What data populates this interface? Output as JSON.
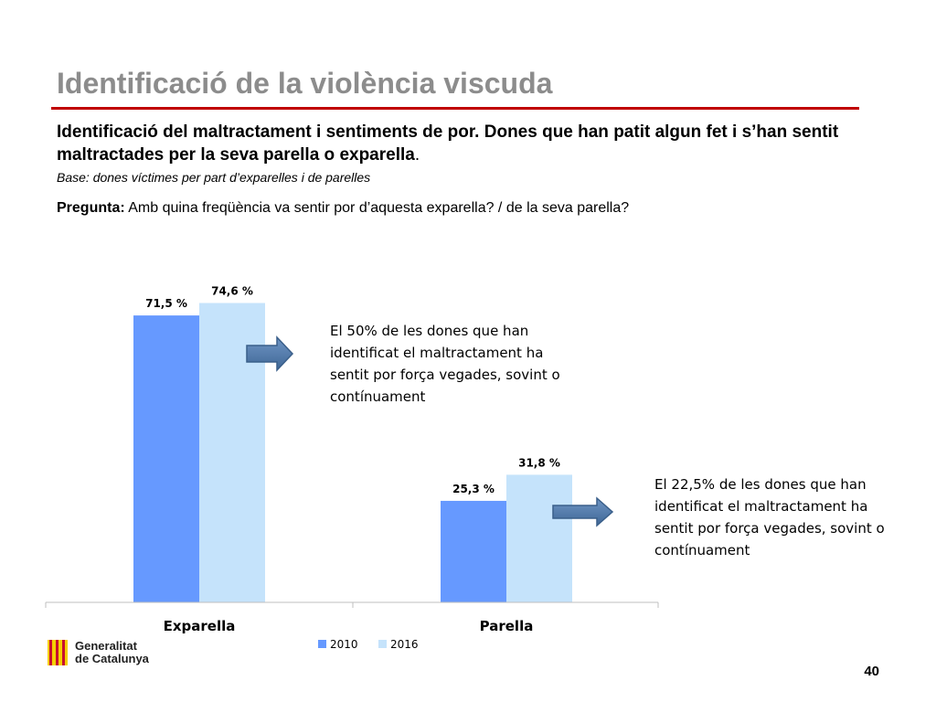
{
  "header": {
    "title": "Identificació de la violència viscuda",
    "subtitle_bold": "Identificació del maltractament i sentiments de por. Dones que han patit algun fet i s’han sentit maltractades per la seva parella o exparella",
    "subtitle_end": ".",
    "base": "Base: dones víctimes per part d’exparelles i de parelles",
    "question_label": "Pregunta:",
    "question_text": " Amb quina freqüència va sentir por d’aquesta exparella? / de la seva parella?"
  },
  "colors": {
    "title": "#8c8c8c",
    "rule": "#c00000",
    "series_2010": "#6699ff",
    "series_2016": "#c5e3fb",
    "arrow": "#4f78a8"
  },
  "chart_data": {
    "type": "bar",
    "categories": [
      "Exparella",
      "Parella"
    ],
    "series": [
      {
        "name": "2010",
        "values": [
          71.5,
          25.3
        ],
        "labels": [
          "71,5 %",
          "25,3 %"
        ]
      },
      {
        "name": "2016",
        "values": [
          74.6,
          31.8
        ],
        "labels": [
          "74,6 %",
          "31,8 %"
        ]
      }
    ],
    "ylim": [
      0,
      100
    ],
    "grid": false,
    "legend": "bottom"
  },
  "annotations": [
    "El 50% de les dones que han identificat el maltractament ha sentit por força vegades, sovint o contínuament",
    "El 22,5% de les dones que han identificat el maltractament ha sentit por força vegades, sovint o contínuament"
  ],
  "footer": {
    "logo_line1": "Generalitat",
    "logo_line2": "de Catalunya",
    "page_number": "40"
  }
}
